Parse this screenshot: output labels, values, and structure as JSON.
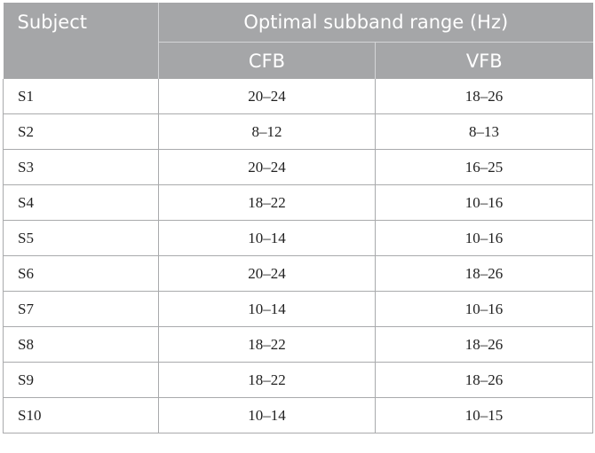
{
  "table": {
    "header": {
      "subject": "Subject",
      "group": "Optimal subband range (Hz)",
      "cfb": "CFB",
      "vfb": "VFB"
    },
    "rows": [
      {
        "subject": "S1",
        "cfb": "20–24",
        "vfb": "18–26"
      },
      {
        "subject": "S2",
        "cfb": "8–12",
        "vfb": "8–13"
      },
      {
        "subject": "S3",
        "cfb": "20–24",
        "vfb": "16–25"
      },
      {
        "subject": "S4",
        "cfb": "18–22",
        "vfb": "10–16"
      },
      {
        "subject": "S5",
        "cfb": "10–14",
        "vfb": "10–16"
      },
      {
        "subject": "S6",
        "cfb": "20–24",
        "vfb": "18–26"
      },
      {
        "subject": "S7",
        "cfb": "10–14",
        "vfb": "10–16"
      },
      {
        "subject": "S8",
        "cfb": "18–22",
        "vfb": "18–26"
      },
      {
        "subject": "S9",
        "cfb": "18–22",
        "vfb": "18–26"
      },
      {
        "subject": "S10",
        "cfb": "10–14",
        "vfb": "10–15"
      }
    ]
  }
}
